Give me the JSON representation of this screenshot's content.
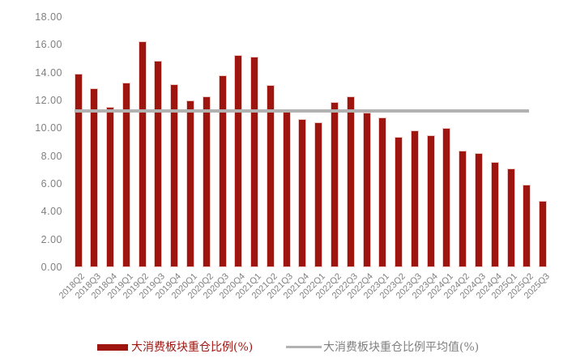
{
  "chart_data": {
    "type": "bar",
    "title": "",
    "xlabel": "",
    "ylabel": "",
    "categories": [
      "2018Q2",
      "2018Q3",
      "2018Q4",
      "2019Q1",
      "2019Q2",
      "2019Q3",
      "2019Q4",
      "2020Q1",
      "2020Q2",
      "2020Q3",
      "2020Q4",
      "2021Q1",
      "2021Q2",
      "2021Q3",
      "2021Q4",
      "2022Q1",
      "2022Q2",
      "2022Q3",
      "2022Q4",
      "2023Q1",
      "2023Q2",
      "2023Q3",
      "2023Q4",
      "2024Q1",
      "2024Q2",
      "2024Q3",
      "2024Q4",
      "2025Q1",
      "2025Q2",
      "2025Q3"
    ],
    "series": [
      {
        "name": "大消费板块重仓比例(%)",
        "type": "bar",
        "color": "#9E140E",
        "values": [
          13.9,
          12.9,
          11.55,
          13.3,
          16.25,
          14.85,
          13.15,
          12.0,
          12.3,
          13.8,
          15.25,
          15.15,
          13.1,
          11.2,
          10.65,
          10.45,
          11.9,
          12.3,
          11.15,
          10.8,
          9.35,
          9.85,
          9.5,
          10.0,
          8.4,
          8.2,
          7.55,
          7.1,
          5.95,
          4.75
        ]
      },
      {
        "name": "大消费板块重仓比例平均值(%)",
        "type": "line",
        "color": "#B2B2B2",
        "value": 11.25
      }
    ],
    "ylim": [
      0,
      18
    ],
    "ytick_labels": [
      "0.00",
      "2.00",
      "4.00",
      "6.00",
      "8.00",
      "10.00",
      "12.00",
      "14.00",
      "16.00",
      "18.00"
    ],
    "grid": false,
    "axes_visible": false,
    "legend_position": "bottom",
    "axis_text_color": "#808080"
  },
  "legend": {
    "bar_label": "大消费板块重仓比例(%)",
    "line_label": "大消费板块重仓比例平均值(%)"
  }
}
